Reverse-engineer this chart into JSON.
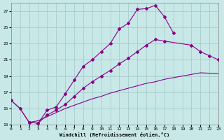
{
  "xlabel": "Windchill (Refroidissement éolien,°C)",
  "bg_color": "#c8e8e8",
  "grid_color": "#a8cccc",
  "line_color": "#880088",
  "line1_x": [
    0,
    1,
    2,
    3,
    4,
    5,
    6,
    7,
    8,
    9,
    10,
    11,
    12,
    13,
    14,
    15,
    16,
    17,
    18
  ],
  "line1_y": [
    16.0,
    15.0,
    13.3,
    13.2,
    14.8,
    15.2,
    16.8,
    18.5,
    20.2,
    21.0,
    22.0,
    23.0,
    24.8,
    25.5,
    27.2,
    27.3,
    27.7,
    26.3,
    24.3
  ],
  "line2_x": [
    2,
    3,
    4,
    5,
    6,
    7,
    8,
    9,
    10,
    11,
    12,
    13,
    14,
    15,
    16,
    17,
    20,
    21,
    22,
    23
  ],
  "line2_y": [
    13.3,
    13.2,
    14.2,
    14.8,
    15.5,
    16.5,
    17.5,
    18.3,
    19.0,
    19.7,
    20.5,
    21.2,
    22.0,
    22.8,
    23.5,
    23.3,
    22.8,
    22.0,
    21.5,
    21.0
  ],
  "line3_x": [
    0,
    1,
    2,
    3,
    4,
    5,
    6,
    7,
    8,
    9,
    10,
    11,
    12,
    13,
    14,
    15,
    16,
    17,
    18,
    19,
    20,
    21,
    23
  ],
  "line3_y": [
    16.0,
    15.0,
    13.3,
    13.5,
    14.0,
    14.5,
    15.0,
    15.4,
    15.8,
    16.2,
    16.5,
    16.9,
    17.2,
    17.5,
    17.8,
    18.1,
    18.3,
    18.6,
    18.8,
    19.0,
    19.2,
    19.4,
    19.3
  ],
  "xlim": [
    0,
    23
  ],
  "ylim": [
    13,
    28
  ],
  "xticks": [
    0,
    1,
    2,
    3,
    4,
    5,
    6,
    7,
    8,
    9,
    10,
    11,
    12,
    13,
    14,
    15,
    16,
    17,
    18,
    19,
    20,
    21,
    22,
    23
  ],
  "yticks": [
    13,
    15,
    17,
    19,
    21,
    23,
    25,
    27
  ]
}
